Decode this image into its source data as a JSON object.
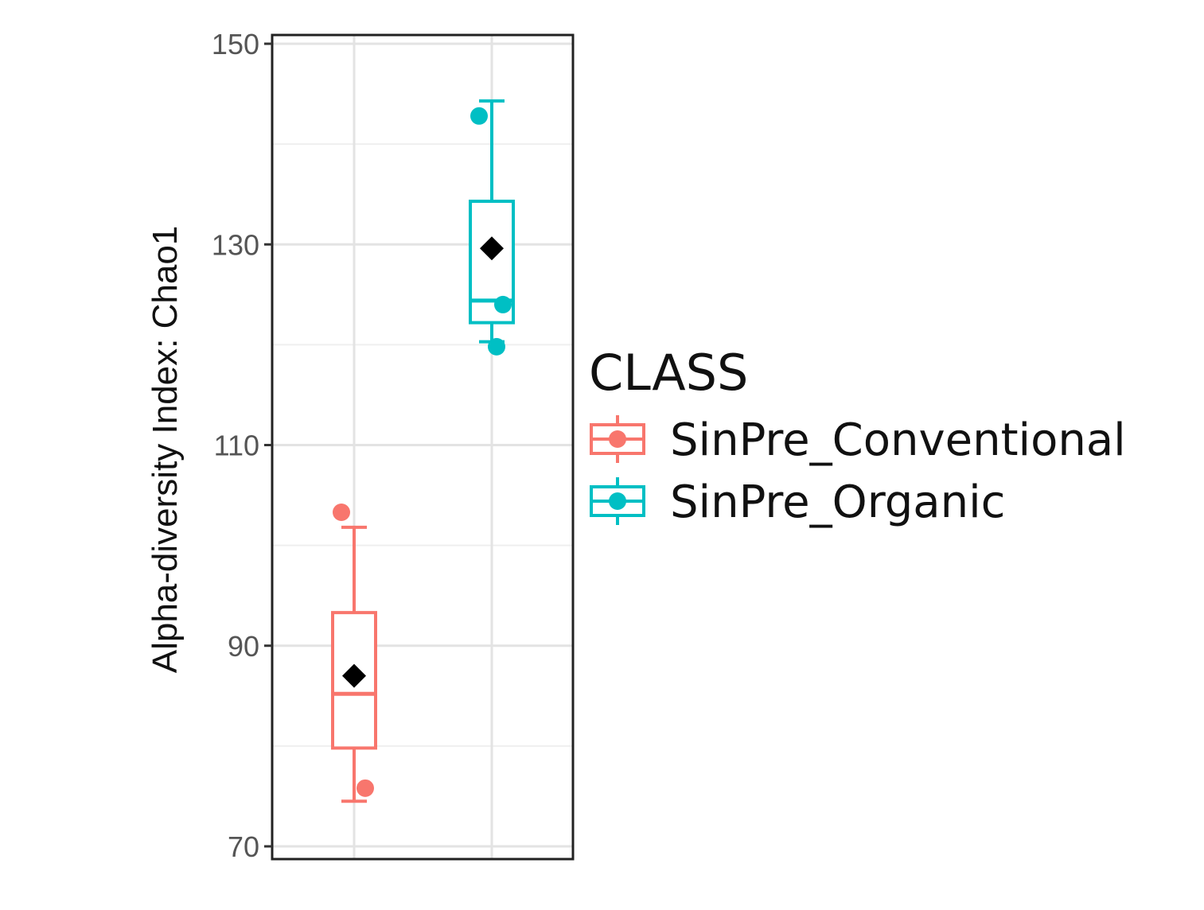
{
  "chart_data": {
    "type": "box",
    "title": "",
    "xlabel": "",
    "ylabel": "Alpha-diversity Index: Chao1",
    "ylim": [
      70,
      151
    ],
    "yticks": [
      70,
      90,
      110,
      130,
      150
    ],
    "grid": true,
    "legend": {
      "title": "CLASS",
      "position": "right",
      "entries": [
        "SinPre_Conventional",
        "SinPre_Organic"
      ]
    },
    "colors": {
      "SinPre_Conventional": "#F8766D",
      "SinPre_Organic": "#00BFC4",
      "mean_marker": "#000000"
    },
    "series": [
      {
        "name": "SinPre_Conventional",
        "whisker_low": 74.5,
        "q1": 79.8,
        "median": 85.2,
        "q3": 93.3,
        "whisker_high": 101.8,
        "mean": 87.0,
        "points": [
          103.3,
          75.8
        ]
      },
      {
        "name": "SinPre_Organic",
        "whisker_low": 120.3,
        "q1": 122.2,
        "median": 124.4,
        "q3": 134.3,
        "whisker_high": 144.3,
        "mean": 129.6,
        "points": [
          142.8,
          124.0,
          119.8
        ]
      }
    ]
  }
}
